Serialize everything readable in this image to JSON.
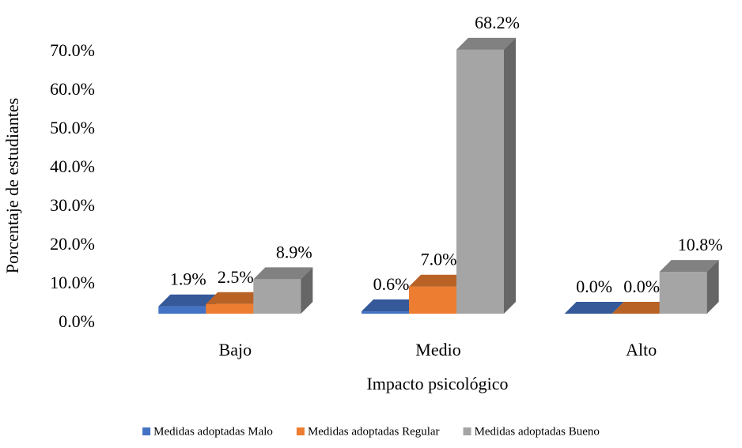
{
  "chart_data": {
    "type": "bar3d",
    "x_label": "Impacto psicológico",
    "y_label": "Porcentaje de estudiantes",
    "categories": [
      "Bajo",
      "Medio",
      "Alto"
    ],
    "series": [
      {
        "name": "Medidas adoptadas Malo",
        "color": "#4472c4",
        "values": [
          1.9,
          0.6,
          0.0
        ],
        "value_labels": [
          "1.9%",
          "0.6%",
          "0.0%"
        ]
      },
      {
        "name": "Medidas adoptadas Regular",
        "color": "#ed7d31",
        "values": [
          2.5,
          7.0,
          0.0
        ],
        "value_labels": [
          "2.5%",
          "7.0%",
          "0.0%"
        ]
      },
      {
        "name": "Medidas adoptadas Bueno",
        "color": "#a5a5a5",
        "values": [
          8.9,
          68.2,
          10.8
        ],
        "value_labels": [
          "8.9%",
          "68.2%",
          "10.8%"
        ]
      }
    ],
    "ylim": [
      0,
      70
    ],
    "yticks": [
      {
        "value": 0,
        "label": "0.0%"
      },
      {
        "value": 10,
        "label": "10.0%"
      },
      {
        "value": 20,
        "label": "20.0%"
      },
      {
        "value": 30,
        "label": "30.0%"
      },
      {
        "value": 40,
        "label": "40.0%"
      },
      {
        "value": 50,
        "label": "50.0%"
      },
      {
        "value": 60,
        "label": "60.0%"
      },
      {
        "value": 70,
        "label": "70.0%"
      }
    ],
    "legend": "bottom"
  }
}
